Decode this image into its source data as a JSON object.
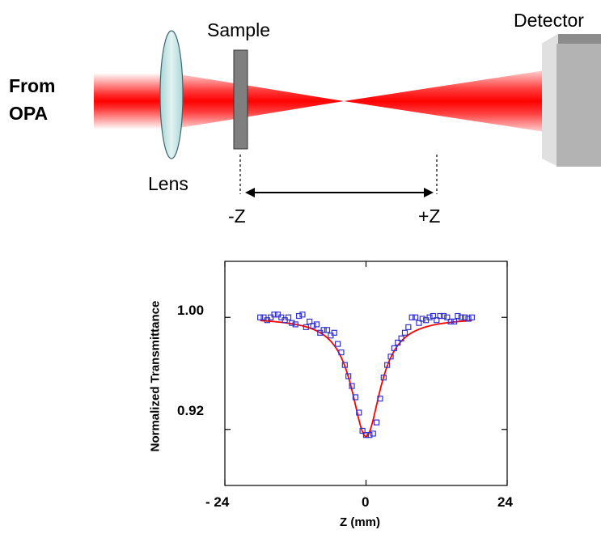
{
  "setup": {
    "source_label_line1": "From",
    "source_label_line2": "OPA",
    "sample_label": "Sample",
    "lens_label": "Lens",
    "detector_label": "Detector",
    "minus_z_label": "-Z",
    "plus_z_label": "+Z"
  },
  "colors": {
    "beam": "#ff0000",
    "lens_fill": "#c5e3e4",
    "sample_fill": "#7f7f7f",
    "detector_front": "#cfcfcf",
    "detector_side": "#aaaaaa",
    "data_marker": "#3333cc",
    "fit_line": "#ff0000"
  },
  "chart_data": {
    "type": "scatter",
    "title": "",
    "xlabel": "Z (mm)",
    "ylabel": "Normalized Transmittance",
    "xlim": [
      -24,
      24
    ],
    "ylim": [
      0.88,
      1.04
    ],
    "xticks": [
      -24,
      0,
      24
    ],
    "xtick_labels": [
      "- 24",
      "0",
      "24"
    ],
    "yticks": [
      1.0,
      0.92
    ],
    "ytick_labels": [
      "1.00",
      "0.92"
    ],
    "grid": false,
    "legend": "none",
    "series": [
      {
        "kind": "markers",
        "marker": "open-square",
        "points": [
          [
            -18.0,
            1.0
          ],
          [
            -17.4,
            1.0
          ],
          [
            -16.8,
            0.998
          ],
          [
            -16.2,
            1.0
          ],
          [
            -15.6,
            1.002
          ],
          [
            -15.0,
            1.002
          ],
          [
            -14.4,
            1.0
          ],
          [
            -13.8,
            0.998
          ],
          [
            -13.2,
            1.0
          ],
          [
            -12.6,
            0.996
          ],
          [
            -12.0,
            0.995
          ],
          [
            -11.4,
            1.001
          ],
          [
            -10.8,
            1.002
          ],
          [
            -10.2,
            0.993
          ],
          [
            -9.6,
            0.997
          ],
          [
            -9.0,
            0.994
          ],
          [
            -8.4,
            0.995
          ],
          [
            -7.8,
            0.989
          ],
          [
            -7.2,
            0.991
          ],
          [
            -6.6,
            0.991
          ],
          [
            -6.0,
            0.987
          ],
          [
            -5.4,
            0.989
          ],
          [
            -4.8,
            0.981
          ],
          [
            -4.2,
            0.975
          ],
          [
            -3.6,
            0.966
          ],
          [
            -3.0,
            0.958
          ],
          [
            -2.4,
            0.951
          ],
          [
            -1.8,
            0.943
          ],
          [
            -1.2,
            0.932
          ],
          [
            -0.6,
            0.919
          ],
          [
            0.0,
            0.916
          ],
          [
            0.6,
            0.916
          ],
          [
            1.2,
            0.917
          ],
          [
            1.8,
            0.925
          ],
          [
            2.4,
            0.942
          ],
          [
            3.0,
            0.957
          ],
          [
            3.6,
            0.966
          ],
          [
            4.2,
            0.972
          ],
          [
            4.8,
            0.978
          ],
          [
            5.4,
            0.982
          ],
          [
            6.0,
            0.985
          ],
          [
            6.6,
            0.989
          ],
          [
            7.2,
            0.993
          ],
          [
            7.8,
            1.0
          ],
          [
            8.4,
            1.0
          ],
          [
            9.0,
            0.996
          ],
          [
            9.6,
            0.999
          ],
          [
            10.2,
            0.998
          ],
          [
            10.8,
            1.0
          ],
          [
            11.4,
            1.001
          ],
          [
            12.0,
            0.998
          ],
          [
            12.6,
            1.001
          ],
          [
            13.2,
            1.001
          ],
          [
            13.8,
            1.0
          ],
          [
            14.4,
            0.997
          ],
          [
            15.0,
            0.997
          ],
          [
            15.6,
            1.001
          ],
          [
            16.2,
            1.0
          ],
          [
            16.8,
            1.0
          ],
          [
            17.4,
            0.999
          ],
          [
            18.0,
            1.0
          ]
        ]
      },
      {
        "kind": "line",
        "curve": "lorentzian",
        "baseline": 1.0,
        "dip_depth": 0.085,
        "half_width_mm": 3.0,
        "x_range": [
          -18,
          18
        ]
      }
    ]
  }
}
